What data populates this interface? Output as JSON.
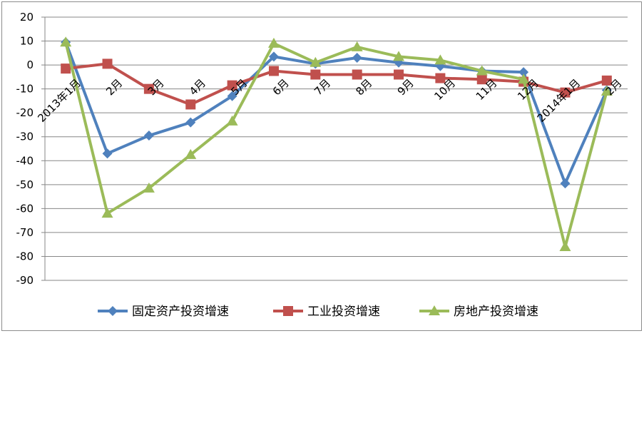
{
  "chart_data": {
    "type": "line",
    "categories": [
      "2013年1月",
      "2月",
      "3月",
      "4月",
      "5月",
      "6月",
      "7月",
      "8月",
      "9月",
      "10月",
      "11月",
      "12月",
      "2014年1月",
      "2月"
    ],
    "series": [
      {
        "name": "固定资产投资增速",
        "color": "#4f81bd",
        "marker": "diamond",
        "values": [
          9.5,
          -37,
          -29.5,
          -24,
          -13,
          3.5,
          0.5,
          3,
          1,
          -0.5,
          -2.5,
          -3,
          -49.5,
          -10.5
        ]
      },
      {
        "name": "工业投资增速",
        "color": "#c0504d",
        "marker": "square",
        "values": [
          -1.5,
          0.5,
          -10,
          -16.5,
          -8.5,
          -2.5,
          -4,
          -4,
          -4,
          -5.5,
          -6,
          -7,
          -11.5,
          -6.5
        ]
      },
      {
        "name": "房地产投资增速",
        "color": "#9bbb59",
        "marker": "triangle",
        "values": [
          9.5,
          -62,
          -51.5,
          -37.5,
          -23.5,
          9,
          1,
          7.5,
          3.5,
          2,
          -2.5,
          -6,
          -76,
          -11
        ]
      }
    ],
    "ylim": [
      -90,
      20
    ],
    "yticks": [
      20,
      10,
      0,
      -10,
      -20,
      -30,
      -40,
      -50,
      -60,
      -70,
      -80,
      -90
    ],
    "grid": true,
    "legend_position": "bottom"
  }
}
